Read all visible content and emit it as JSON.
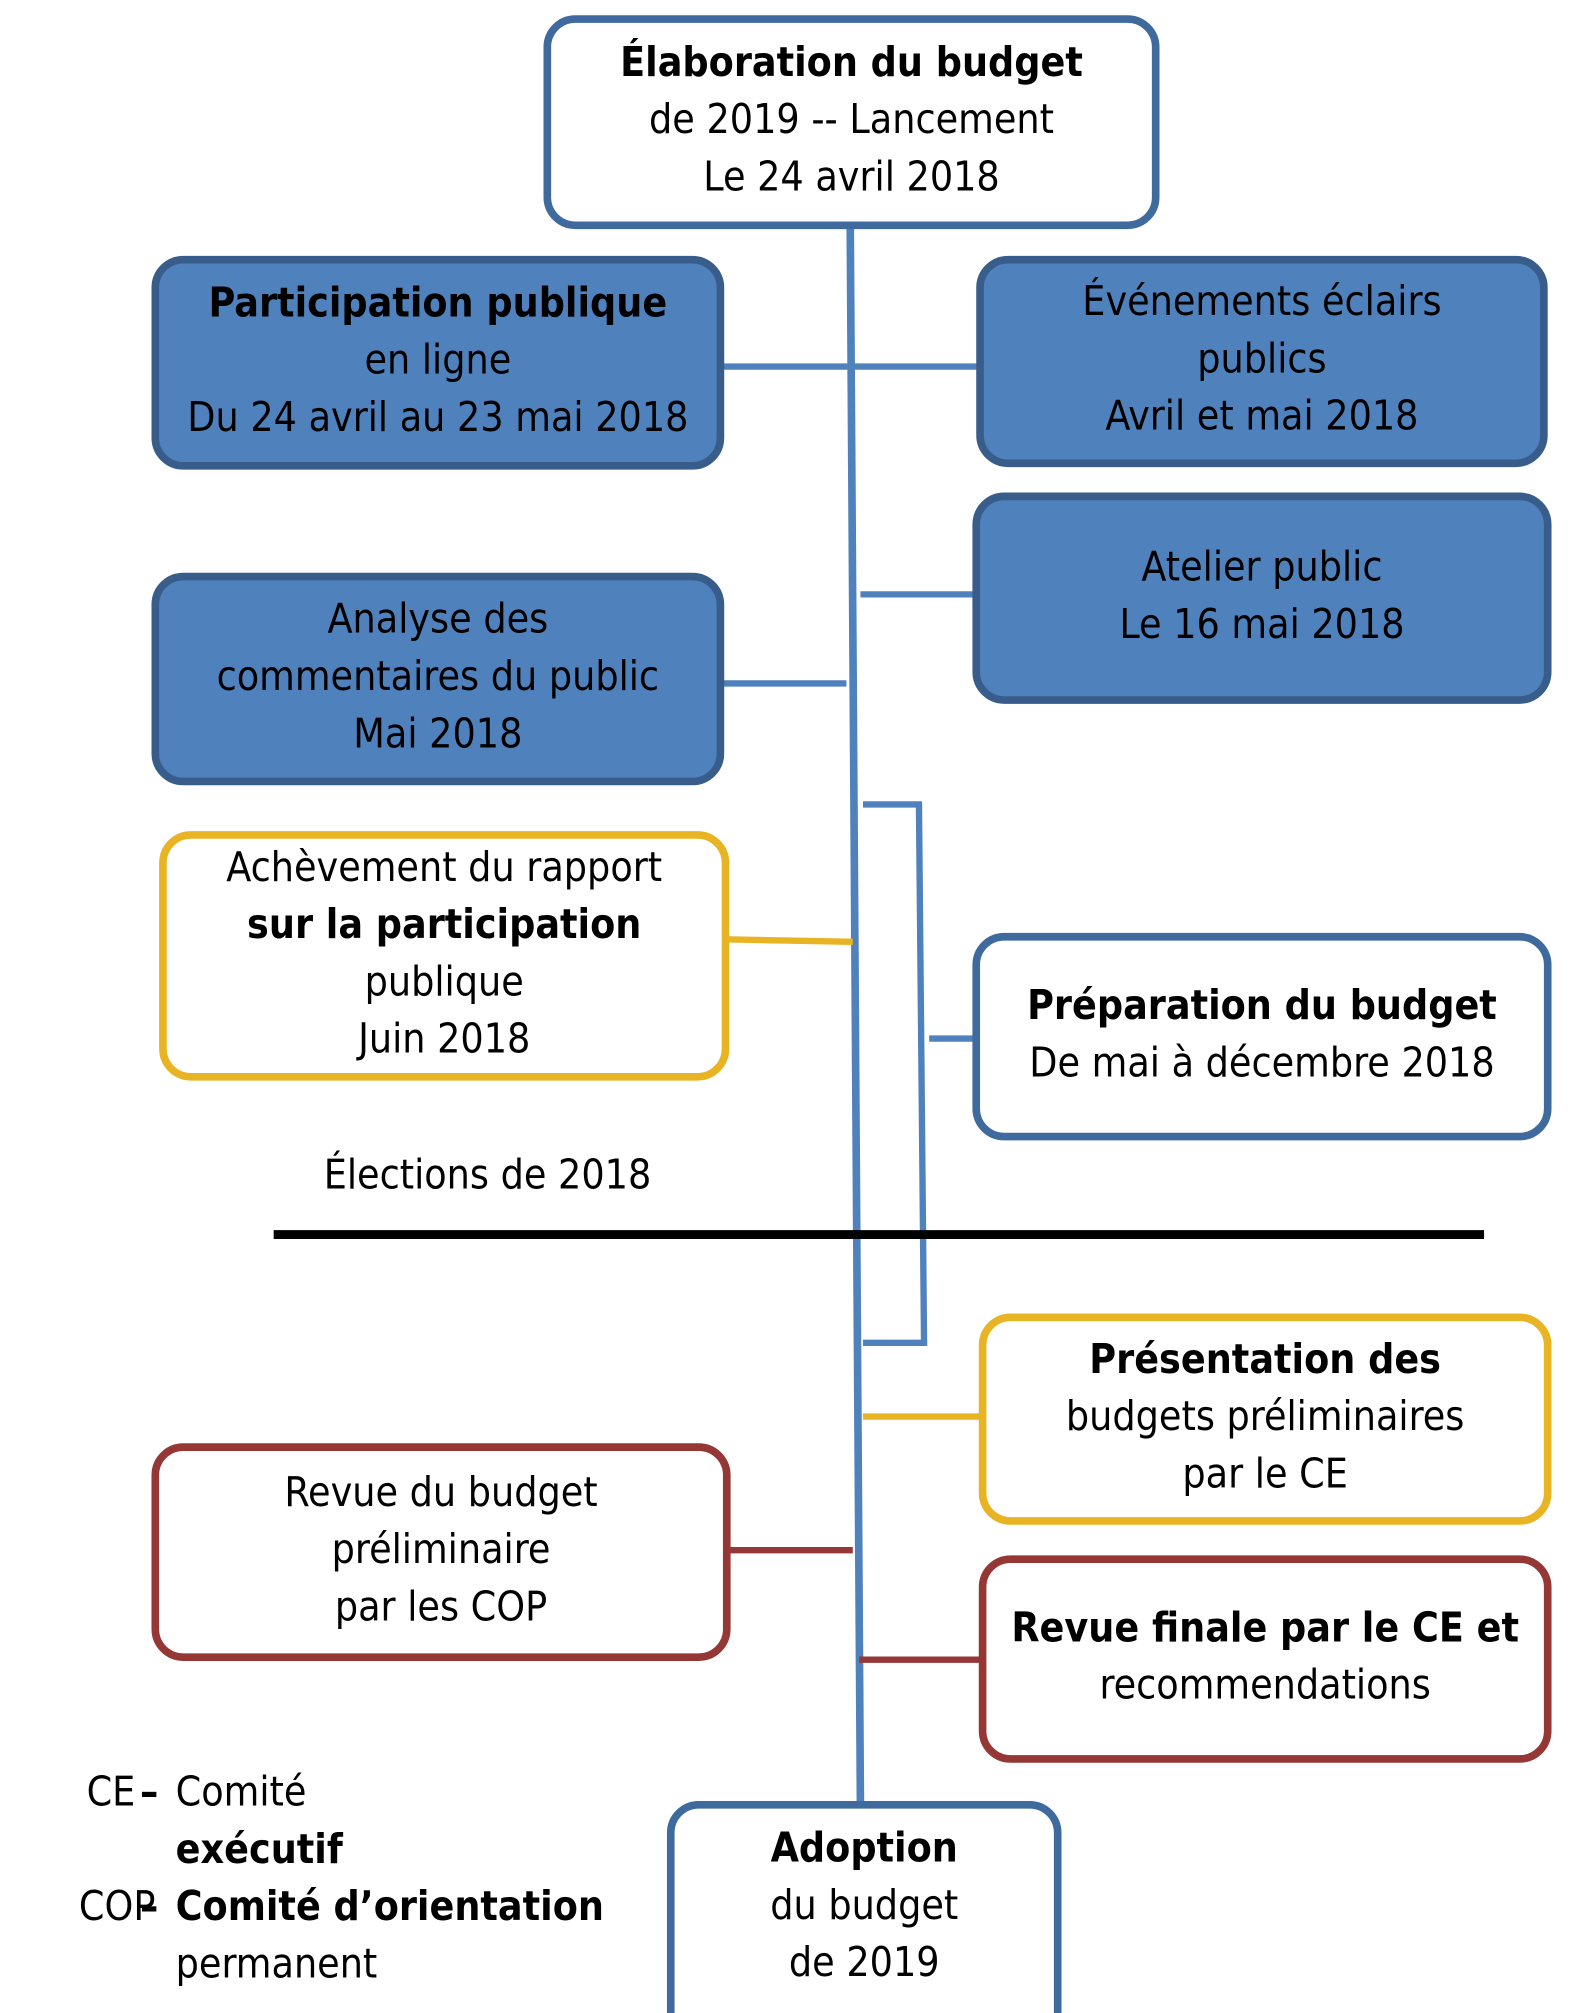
{
  "nodes": [
    {
      "lines": [
        "Élaboration du budget",
        "de 2019 -- Lancement",
        "Le 24 avril 2018"
      ]
    },
    {
      "lines": [
        "Participation publique",
        "en ligne",
        "Du 24 avril au 23 mai 2018"
      ]
    },
    {
      "lines": [
        "Événements éclairs",
        "publics",
        "Avril et mai 2018"
      ]
    },
    {
      "lines": [
        "Atelier public",
        "Le 16 mai 2018"
      ]
    },
    {
      "lines": [
        "Analyse des",
        "commentaires du public",
        "Mai 2018"
      ]
    },
    {
      "lines": [
        "Achèvement du rapport",
        "sur la participation",
        "publique",
        "Juin 2018"
      ]
    },
    {
      "lines": [
        "Préparation du budget",
        "De mai à décembre 2018"
      ]
    },
    {
      "lines": [
        "Présentation des",
        "budgets préliminaires",
        "par le CE"
      ]
    },
    {
      "lines": [
        "Revue du budget",
        "préliminaire",
        "par les COP"
      ]
    },
    {
      "lines": [
        "Revue finale par le CE et",
        "recommendations"
      ]
    },
    {
      "lines": [
        "Adoption",
        "du budget",
        "de 2019"
      ]
    }
  ],
  "divider": "Élections de 2018",
  "legend": [
    {
      "abbr": "CE",
      "sep": "–",
      "lines": [
        "Comité",
        "exécutif"
      ]
    },
    {
      "abbr": "COP",
      "sep": "–",
      "lines": [
        "Comité d’orientation",
        "permanent"
      ]
    }
  ]
}
